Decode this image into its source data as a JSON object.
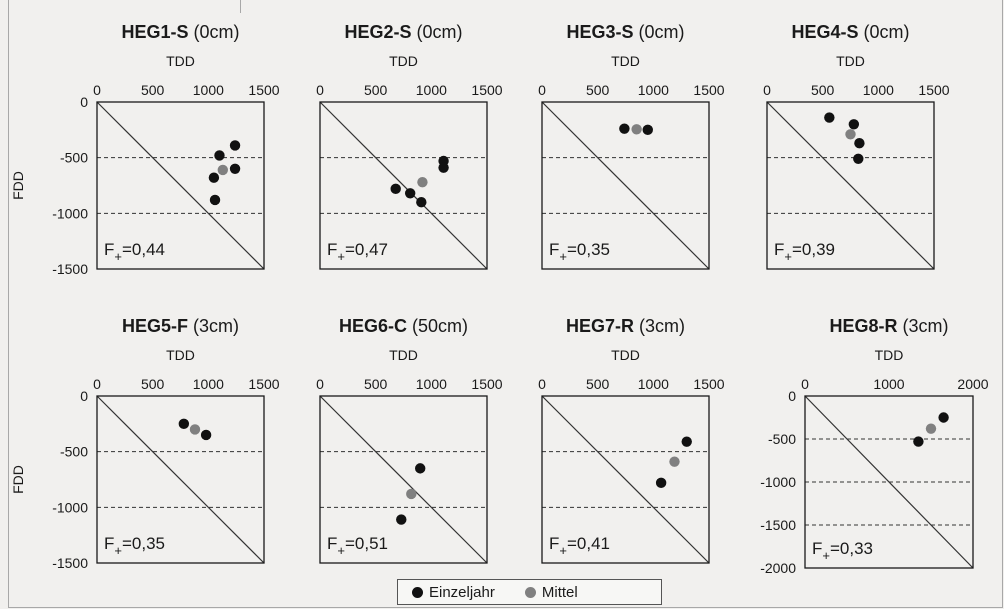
{
  "chart_data": [
    {
      "type": "scatter",
      "title": "HEG1-S",
      "depth": "(0cm)",
      "xlabel": "TDD",
      "ylabel": "FDD",
      "xlim": [
        0,
        1500
      ],
      "ylim": [
        -1500,
        0
      ],
      "xticks": [
        "0",
        "500",
        "1000",
        "1500"
      ],
      "yticks": [
        "0",
        "-500",
        "-1000",
        "-1500"
      ],
      "f_label": "=0,44",
      "series": [
        {
          "name": "Einzeljahr",
          "x": [
            1240,
            1100,
            1240,
            1050,
            1060
          ],
          "y": [
            -390,
            -480,
            -600,
            -680,
            -880
          ]
        },
        {
          "name": "Mittel",
          "x": [
            1130
          ],
          "y": [
            -610
          ]
        }
      ]
    },
    {
      "type": "scatter",
      "title": "HEG2-S",
      "depth": "(0cm)",
      "xlabel": "TDD",
      "ylabel": "",
      "xlim": [
        0,
        1500
      ],
      "ylim": [
        -1500,
        0
      ],
      "xticks": [
        "0",
        "500",
        "1000",
        "1500"
      ],
      "yticks": [],
      "f_label": "=0,47",
      "series": [
        {
          "name": "Einzeljahr",
          "x": [
            1110,
            1110,
            680,
            810,
            910
          ],
          "y": [
            -530,
            -590,
            -780,
            -820,
            -900
          ]
        },
        {
          "name": "Mittel",
          "x": [
            920
          ],
          "y": [
            -720
          ]
        }
      ]
    },
    {
      "type": "scatter",
      "title": "HEG3-S",
      "depth": "(0cm)",
      "xlabel": "TDD",
      "ylabel": "",
      "xlim": [
        0,
        1500
      ],
      "ylim": [
        -1500,
        0
      ],
      "xticks": [
        "0",
        "500",
        "1000",
        "1500"
      ],
      "yticks": [],
      "f_label": "=0,35",
      "series": [
        {
          "name": "Einzeljahr",
          "x": [
            740,
            950
          ],
          "y": [
            -240,
            -250
          ]
        },
        {
          "name": "Mittel",
          "x": [
            850
          ],
          "y": [
            -245
          ]
        }
      ]
    },
    {
      "type": "scatter",
      "title": "HEG4-S",
      "depth": "(0cm)",
      "xlabel": "TDD",
      "ylabel": "",
      "xlim": [
        0,
        1500
      ],
      "ylim": [
        -1500,
        0
      ],
      "xticks": [
        "0",
        "500",
        "1000",
        "1500"
      ],
      "yticks": [],
      "f_label": "=0,39",
      "series": [
        {
          "name": "Einzeljahr",
          "x": [
            560,
            780,
            830,
            820
          ],
          "y": [
            -140,
            -200,
            -370,
            -510
          ]
        },
        {
          "name": "Mittel",
          "x": [
            750
          ],
          "y": [
            -290
          ]
        }
      ]
    },
    {
      "type": "scatter",
      "title": "HEG5-F",
      "depth": "(3cm)",
      "xlabel": "TDD",
      "ylabel": "FDD",
      "xlim": [
        0,
        1500
      ],
      "ylim": [
        -1500,
        0
      ],
      "xticks": [
        "0",
        "500",
        "1000",
        "1500"
      ],
      "yticks": [
        "0",
        "-500",
        "-1000",
        "-1500"
      ],
      "f_label": "=0,35",
      "series": [
        {
          "name": "Einzeljahr",
          "x": [
            780,
            980
          ],
          "y": [
            -250,
            -350
          ]
        },
        {
          "name": "Mittel",
          "x": [
            880
          ],
          "y": [
            -300
          ]
        }
      ]
    },
    {
      "type": "scatter",
      "title": "HEG6-C",
      "depth": "(50cm)",
      "xlabel": "TDD",
      "ylabel": "",
      "xlim": [
        0,
        1500
      ],
      "ylim": [
        -1500,
        0
      ],
      "xticks": [
        "0",
        "500",
        "1000",
        "1500"
      ],
      "yticks": [],
      "f_label": "=0,51",
      "series": [
        {
          "name": "Einzeljahr",
          "x": [
            900,
            730
          ],
          "y": [
            -650,
            -1110
          ]
        },
        {
          "name": "Mittel",
          "x": [
            820
          ],
          "y": [
            -880
          ]
        }
      ]
    },
    {
      "type": "scatter",
      "title": "HEG7-R",
      "depth": "(3cm)",
      "xlabel": "TDD",
      "ylabel": "",
      "xlim": [
        0,
        1500
      ],
      "ylim": [
        -1500,
        0
      ],
      "xticks": [
        "0",
        "500",
        "1000",
        "1500"
      ],
      "yticks": [],
      "f_label": "=0,41",
      "series": [
        {
          "name": "Einzeljahr",
          "x": [
            1300,
            1070
          ],
          "y": [
            -410,
            -780
          ]
        },
        {
          "name": "Mittel",
          "x": [
            1190
          ],
          "y": [
            -590
          ]
        }
      ]
    },
    {
      "type": "scatter",
      "title": "HEG8-R",
      "depth": "(3cm)",
      "xlabel": "TDD",
      "ylabel": "",
      "xlim": [
        0,
        2000
      ],
      "ylim": [
        -2000,
        0
      ],
      "xticks": [
        "0",
        "1000",
        "2000"
      ],
      "yticks": [
        "0",
        "-500",
        "-1000",
        "-1500",
        "-2000"
      ],
      "f_label": "=0,33",
      "series": [
        {
          "name": "Einzeljahr",
          "x": [
            1650,
            1350
          ],
          "y": [
            -250,
            -530
          ]
        },
        {
          "name": "Mittel",
          "x": [
            1500
          ],
          "y": [
            -380
          ]
        }
      ]
    }
  ],
  "legend": {
    "items": [
      {
        "label": "Einzeljahr",
        "color": "#111111"
      },
      {
        "label": "Mittel",
        "color": "#808080"
      }
    ]
  },
  "colors": {
    "einzeljahr": "#111111",
    "mittel": "#808080",
    "axis": "#1a1a1a",
    "grid": "#333333"
  }
}
